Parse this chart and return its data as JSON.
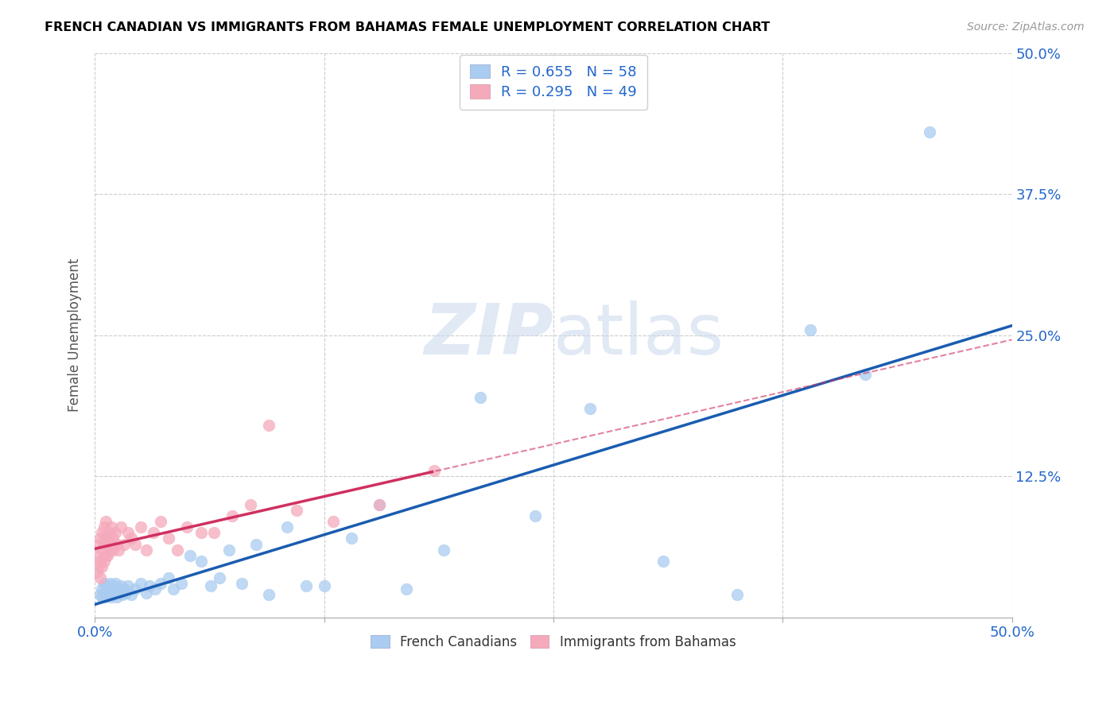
{
  "title": "FRENCH CANADIAN VS IMMIGRANTS FROM BAHAMAS FEMALE UNEMPLOYMENT CORRELATION CHART",
  "source": "Source: ZipAtlas.com",
  "ylabel": "Female Unemployment",
  "xlim": [
    0.0,
    0.5
  ],
  "ylim": [
    0.0,
    0.5
  ],
  "xticks": [
    0.0,
    0.125,
    0.25,
    0.375,
    0.5
  ],
  "yticks": [
    0.0,
    0.125,
    0.25,
    0.375,
    0.5
  ],
  "xticklabels": [
    "0.0%",
    "",
    "",
    "",
    "50.0%"
  ],
  "yticklabels_right": [
    "",
    "12.5%",
    "25.0%",
    "37.5%",
    "50.0%"
  ],
  "blue_R": 0.655,
  "blue_N": 58,
  "pink_R": 0.295,
  "pink_N": 49,
  "blue_color": "#aaccf0",
  "pink_color": "#f5aabb",
  "blue_line_color": "#1a5cb0",
  "pink_line_color": "#d03060",
  "watermark_zip": "ZIP",
  "watermark_atlas": "atlas",
  "legend_label_blue": "French Canadians",
  "legend_label_pink": "Immigrants from Bahamas",
  "blue_x": [
    0.003,
    0.004,
    0.004,
    0.005,
    0.005,
    0.006,
    0.006,
    0.007,
    0.007,
    0.008,
    0.008,
    0.009,
    0.009,
    0.01,
    0.01,
    0.011,
    0.011,
    0.012,
    0.012,
    0.013,
    0.014,
    0.015,
    0.016,
    0.017,
    0.018,
    0.02,
    0.022,
    0.025,
    0.028,
    0.03,
    0.033,
    0.036,
    0.04,
    0.043,
    0.047,
    0.052,
    0.058,
    0.063,
    0.068,
    0.073,
    0.08,
    0.088,
    0.095,
    0.105,
    0.115,
    0.125,
    0.14,
    0.155,
    0.17,
    0.19,
    0.21,
    0.24,
    0.27,
    0.31,
    0.35,
    0.39,
    0.42,
    0.455
  ],
  "blue_y": [
    0.02,
    0.018,
    0.025,
    0.022,
    0.03,
    0.018,
    0.028,
    0.02,
    0.025,
    0.022,
    0.03,
    0.018,
    0.025,
    0.02,
    0.028,
    0.022,
    0.03,
    0.018,
    0.025,
    0.022,
    0.028,
    0.02,
    0.025,
    0.022,
    0.028,
    0.02,
    0.025,
    0.03,
    0.022,
    0.028,
    0.025,
    0.03,
    0.035,
    0.025,
    0.03,
    0.055,
    0.05,
    0.028,
    0.035,
    0.06,
    0.03,
    0.065,
    0.02,
    0.08,
    0.028,
    0.028,
    0.07,
    0.1,
    0.025,
    0.06,
    0.195,
    0.09,
    0.185,
    0.05,
    0.02,
    0.255,
    0.215,
    0.43
  ],
  "pink_x": [
    0.001,
    0.001,
    0.002,
    0.002,
    0.003,
    0.003,
    0.003,
    0.004,
    0.004,
    0.004,
    0.005,
    0.005,
    0.005,
    0.006,
    0.006,
    0.006,
    0.007,
    0.007,
    0.007,
    0.008,
    0.008,
    0.009,
    0.009,
    0.01,
    0.01,
    0.011,
    0.012,
    0.013,
    0.014,
    0.016,
    0.018,
    0.02,
    0.022,
    0.025,
    0.028,
    0.032,
    0.036,
    0.04,
    0.045,
    0.05,
    0.058,
    0.065,
    0.075,
    0.085,
    0.095,
    0.11,
    0.13,
    0.155,
    0.185
  ],
  "pink_y": [
    0.04,
    0.055,
    0.045,
    0.065,
    0.035,
    0.05,
    0.07,
    0.045,
    0.06,
    0.075,
    0.05,
    0.065,
    0.08,
    0.055,
    0.07,
    0.085,
    0.055,
    0.07,
    0.065,
    0.06,
    0.075,
    0.065,
    0.08,
    0.07,
    0.06,
    0.075,
    0.065,
    0.06,
    0.08,
    0.065,
    0.075,
    0.07,
    0.065,
    0.08,
    0.06,
    0.075,
    0.085,
    0.07,
    0.06,
    0.08,
    0.075,
    0.075,
    0.09,
    0.1,
    0.17,
    0.095,
    0.085,
    0.1,
    0.13
  ]
}
